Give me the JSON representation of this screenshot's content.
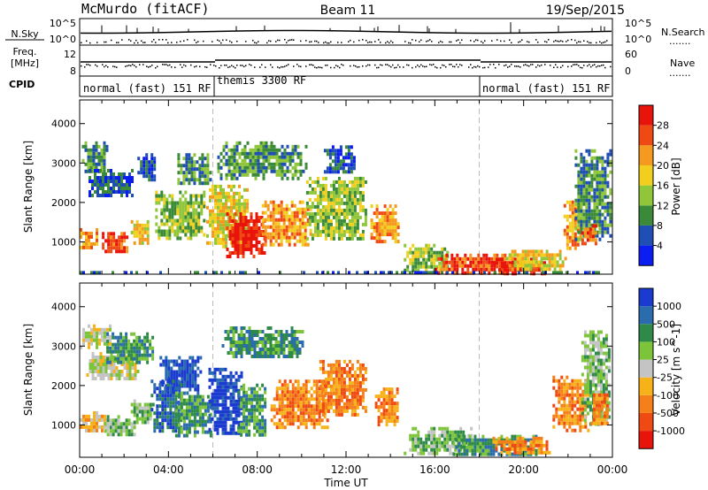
{
  "header": {
    "station": "McMurdo (fitACF)",
    "beam": "Beam 11",
    "date": "19/Sep/2015"
  },
  "summary_labels": {
    "nsky": "N.Sky",
    "nsearch": "N.Search",
    "freq_line1": "Freq.",
    "freq_line2": "[MHz]",
    "nave": "Nave",
    "cpid": "CPID",
    "nsky_top": "10^5",
    "nsky_bot": "10^0",
    "nsearch_top": "10^5",
    "nsearch_bot": "10^0",
    "freq_top": "12",
    "freq_bot": "8",
    "nave_top": "60",
    "nave_bot": "0",
    "dots": "......."
  },
  "cpid_segments": [
    {
      "label": "normal (fast) 151 RF",
      "start_hour": 0
    },
    {
      "label": "themis 3300 RF",
      "start_hour": 6
    },
    {
      "label": "normal (fast) 151 RF",
      "start_hour": 18
    }
  ],
  "axes": {
    "ylabel": "Slant Range [km]",
    "xlabel": "Time UT",
    "xlim": [
      0,
      24
    ],
    "ylim": [
      180,
      4600
    ],
    "x_ticks": [
      "00:00",
      "04:00",
      "08:00",
      "12:00",
      "16:00",
      "20:00",
      "00:00"
    ],
    "y_ticks": [
      1000,
      2000,
      3000,
      4000
    ]
  },
  "chart_data": [
    {
      "type": "heatmap",
      "panel": "power",
      "colorbar_label": "Power [dB]",
      "colorbar_ticks": [
        "4",
        "8",
        "12",
        "16",
        "20",
        "24",
        "28"
      ],
      "colorbar_range": [
        0,
        30
      ],
      "colors": [
        "#0b1df0",
        "#1f4fb4",
        "#3a8a3a",
        "#8fc63a",
        "#f2cf1e",
        "#f59a1e",
        "#f04a14",
        "#e8140c"
      ],
      "regions": [
        {
          "t": [
            0.1,
            1.2
          ],
          "r": [
            2750,
            3550
          ],
          "level": 2
        },
        {
          "t": [
            0.4,
            2.4
          ],
          "r": [
            2150,
            2850
          ],
          "level": 1
        },
        {
          "t": [
            0.0,
            0.8
          ],
          "r": [
            850,
            1350
          ],
          "level": 5
        },
        {
          "t": [
            1.0,
            2.1
          ],
          "r": [
            720,
            1250
          ],
          "level": 6
        },
        {
          "t": [
            2.3,
            3.1
          ],
          "r": [
            950,
            1550
          ],
          "level": 4
        },
        {
          "t": [
            2.6,
            3.4
          ],
          "r": [
            2550,
            3250
          ],
          "level": 1
        },
        {
          "t": [
            3.4,
            5.6
          ],
          "r": [
            1050,
            2300
          ],
          "level": 3
        },
        {
          "t": [
            4.4,
            5.9
          ],
          "r": [
            2450,
            3250
          ],
          "level": 2
        },
        {
          "t": [
            5.7,
            7.6
          ],
          "r": [
            850,
            2450
          ],
          "level": 4
        },
        {
          "t": [
            6.6,
            8.3
          ],
          "r": [
            650,
            1750
          ],
          "level": 7
        },
        {
          "t": [
            6.2,
            10.2
          ],
          "r": [
            2650,
            3550
          ],
          "level": 2
        },
        {
          "t": [
            8.2,
            10.4
          ],
          "r": [
            950,
            2050
          ],
          "level": 5
        },
        {
          "t": [
            10.2,
            12.9
          ],
          "r": [
            1050,
            2650
          ],
          "level": 3
        },
        {
          "t": [
            11.0,
            12.4
          ],
          "r": [
            2750,
            3450
          ],
          "level": 1
        },
        {
          "t": [
            13.1,
            14.3
          ],
          "r": [
            1050,
            1950
          ],
          "level": 5
        },
        {
          "t": [
            14.6,
            16.6
          ],
          "r": [
            280,
            950
          ],
          "level": 3
        },
        {
          "t": [
            16.0,
            19.5
          ],
          "r": [
            220,
            700
          ],
          "level": 6
        },
        {
          "t": [
            18.5,
            21.0
          ],
          "r": [
            220,
            600
          ],
          "level": 7
        },
        {
          "t": [
            19.2,
            21.9
          ],
          "r": [
            280,
            800
          ],
          "level": 4
        },
        {
          "t": [
            21.8,
            22.6
          ],
          "r": [
            850,
            2050
          ],
          "level": 5
        },
        {
          "t": [
            22.3,
            23.9
          ],
          "r": [
            1050,
            3350
          ],
          "level": 2
        },
        {
          "t": [
            22.6,
            23.3
          ],
          "r": [
            950,
            1450
          ],
          "level": 6
        },
        {
          "t": [
            0.0,
            24.0
          ],
          "r": [
            180,
            260
          ],
          "level": 1
        }
      ]
    },
    {
      "type": "heatmap",
      "panel": "velocity",
      "colorbar_label": "Velocity [m s^-1]",
      "colorbar_ticks": [
        "1000",
        "500",
        "100",
        "25",
        "-25",
        "-100",
        "-500",
        "-1000"
      ],
      "colorbar_range": [
        -1200,
        1200
      ],
      "colors": [
        "#1a3ad0",
        "#2a6cae",
        "#2f8a4a",
        "#7cc43a",
        "#c4c4c4",
        "#f7b21a",
        "#f5801a",
        "#f04a14",
        "#e8140c"
      ],
      "regions": [
        {
          "t": [
            0.0,
            1.4
          ],
          "r": [
            2950,
            3550
          ],
          "level": 4
        },
        {
          "t": [
            0.3,
            2.6
          ],
          "r": [
            2150,
            2850
          ],
          "level": 4
        },
        {
          "t": [
            1.2,
            3.3
          ],
          "r": [
            2600,
            3350
          ],
          "level": 2
        },
        {
          "t": [
            0.0,
            1.3
          ],
          "r": [
            850,
            1350
          ],
          "level": 5
        },
        {
          "t": [
            1.1,
            2.5
          ],
          "r": [
            750,
            1250
          ],
          "level": 3
        },
        {
          "t": [
            2.3,
            3.3
          ],
          "r": [
            1050,
            1650
          ],
          "level": 3
        },
        {
          "t": [
            3.6,
            5.4
          ],
          "r": [
            1850,
            2750
          ],
          "level": 0
        },
        {
          "t": [
            3.2,
            4.6
          ],
          "r": [
            850,
            2150
          ],
          "level": 1
        },
        {
          "t": [
            4.3,
            5.9
          ],
          "r": [
            750,
            1850
          ],
          "level": 2
        },
        {
          "t": [
            5.8,
            7.3
          ],
          "r": [
            750,
            2450
          ],
          "level": 0
        },
        {
          "t": [
            7.1,
            8.4
          ],
          "r": [
            750,
            2050
          ],
          "level": 2
        },
        {
          "t": [
            6.4,
            10.1
          ],
          "r": [
            2700,
            3500
          ],
          "level": 2
        },
        {
          "t": [
            8.6,
            11.2
          ],
          "r": [
            950,
            2150
          ],
          "level": 6
        },
        {
          "t": [
            10.8,
            12.9
          ],
          "r": [
            1250,
            2650
          ],
          "level": 6
        },
        {
          "t": [
            13.3,
            14.3
          ],
          "r": [
            1050,
            1950
          ],
          "level": 6
        },
        {
          "t": [
            14.6,
            17.6
          ],
          "r": [
            300,
            950
          ],
          "level": 3
        },
        {
          "t": [
            16.8,
            20.6
          ],
          "r": [
            220,
            750
          ],
          "level": 2
        },
        {
          "t": [
            18.6,
            21.2
          ],
          "r": [
            300,
            700
          ],
          "level": 6
        },
        {
          "t": [
            21.3,
            22.9
          ],
          "r": [
            850,
            2250
          ],
          "level": 6
        },
        {
          "t": [
            22.6,
            23.9
          ],
          "r": [
            1050,
            3400
          ],
          "level": 3
        },
        {
          "t": [
            23.0,
            23.8
          ],
          "r": [
            1050,
            1800
          ],
          "level": 6
        }
      ]
    }
  ]
}
